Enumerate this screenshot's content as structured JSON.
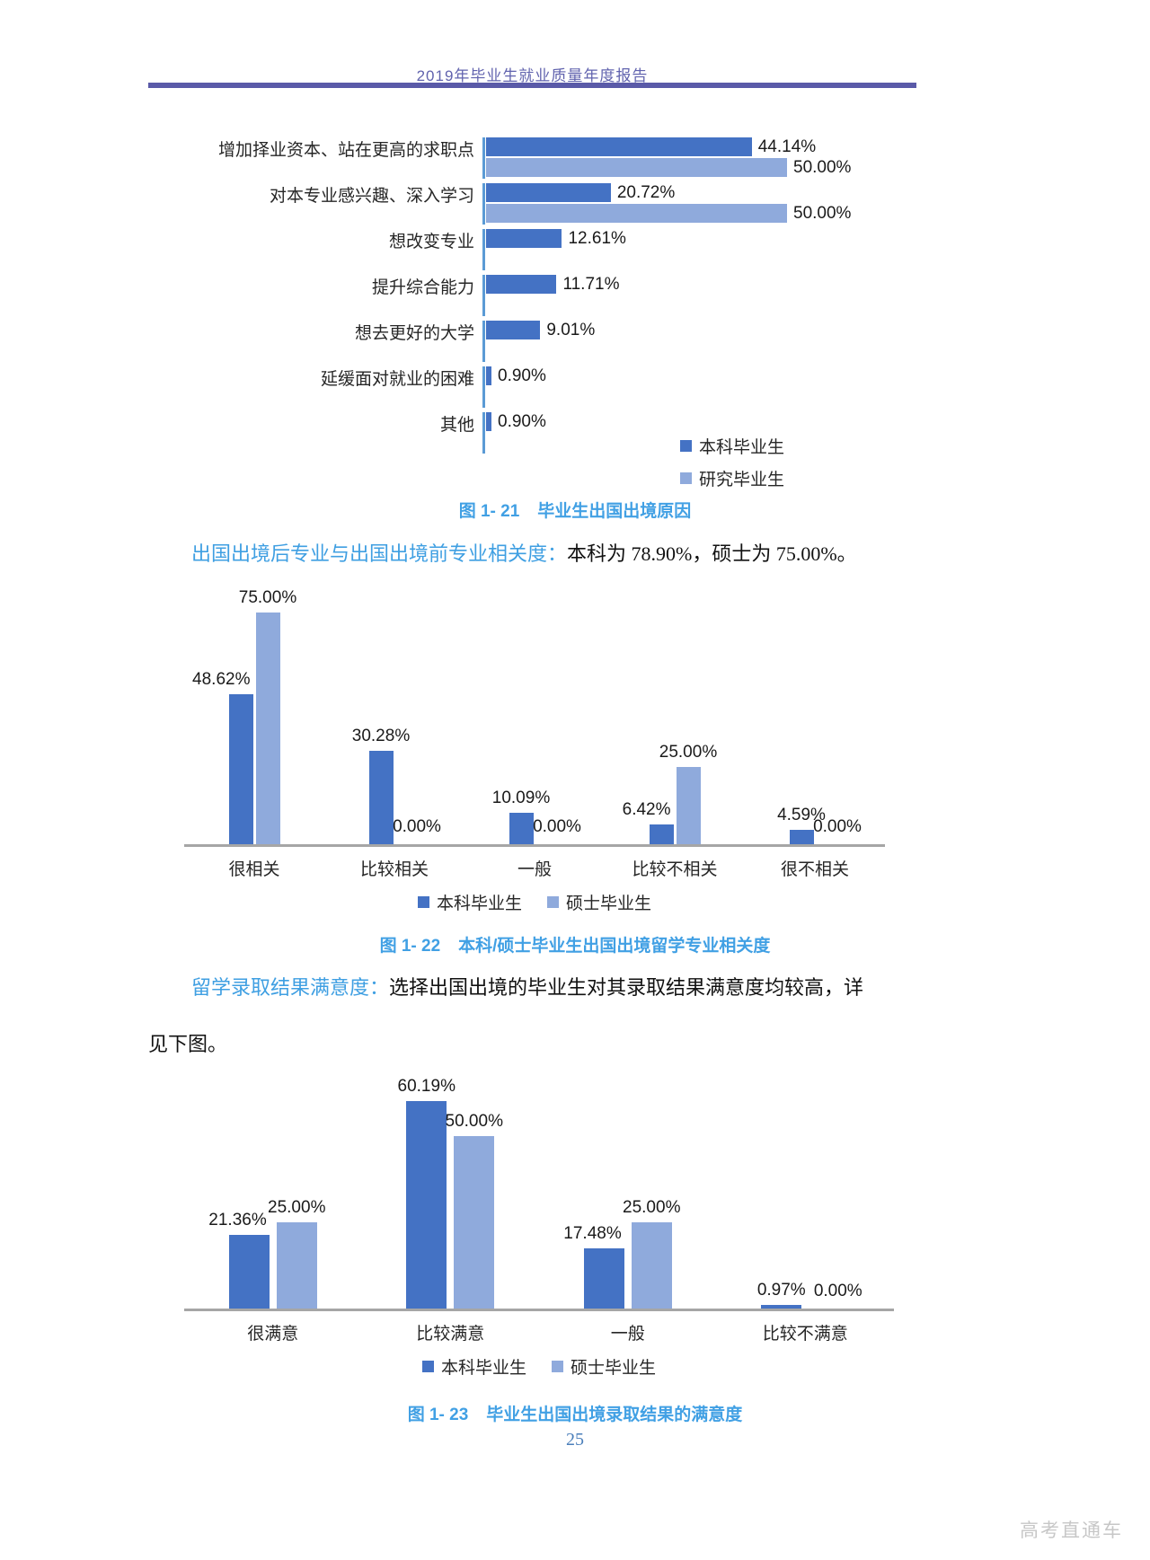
{
  "header": {
    "title": "2019年毕业生就业质量年度报告"
  },
  "paragraphs": {
    "p1_lead": "出国出境后专业与出国出境前专业相关度：",
    "p1_body": "本科为 78.90%，硕士为 75.00%。",
    "p2_lead": "留学录取结果满意度：",
    "p2_body": "选择出国出境的毕业生对其录取结果满意度均较高，详",
    "p2_line2": "见下图。"
  },
  "footer": {
    "page_number": "25",
    "watermark": "高考直通车"
  },
  "colors": {
    "series_undergrad": "#4472c4",
    "series_master": "#8faadc",
    "axis_line": "#5b9bd5",
    "baseline": "#a6a6a6",
    "caption_blue": "#41a0e4",
    "header_purple": "#5a5aa8"
  },
  "chart_data": [
    {
      "id": "fig-1-21",
      "type": "bar",
      "orientation": "horizontal",
      "caption_num": "图 1- 21",
      "caption_text": "毕业生出国出境原因",
      "categories": [
        "增加择业资本、站在更高的求职点",
        "对本专业感兴趣、深入学习",
        "想改变专业",
        "提升综合能力",
        "想去更好的大学",
        "延缓面对就业的困难",
        "其他"
      ],
      "series": [
        {
          "name": "本科毕业生",
          "values": [
            44.14,
            20.72,
            12.61,
            11.71,
            9.01,
            0.9,
            0.9
          ]
        },
        {
          "name": "研究毕业生",
          "values": [
            50.0,
            50.0,
            null,
            null,
            null,
            null,
            null
          ]
        }
      ],
      "value_label_format": "0.00%",
      "xlim": [
        0,
        55
      ],
      "grid": false,
      "legend_position": "inside-bottom-right"
    },
    {
      "id": "fig-1-22",
      "type": "bar",
      "orientation": "vertical",
      "caption_num": "图 1- 22",
      "caption_text": "本科/硕士毕业生出国出境留学专业相关度",
      "categories": [
        "很相关",
        "比较相关",
        "一般",
        "比较不相关",
        "很不相关"
      ],
      "series": [
        {
          "name": "本科毕业生",
          "values": [
            48.62,
            30.28,
            10.09,
            6.42,
            4.59
          ]
        },
        {
          "name": "硕士毕业生",
          "values": [
            75.0,
            0.0,
            0.0,
            25.0,
            0.0
          ]
        }
      ],
      "value_label_format": "0.00%",
      "ylim": [
        0,
        80
      ],
      "grid": false,
      "legend_position": "bottom-center"
    },
    {
      "id": "fig-1-23",
      "type": "bar",
      "orientation": "vertical",
      "caption_num": "图 1- 23",
      "caption_text": "毕业生出国出境录取结果的满意度",
      "categories": [
        "很满意",
        "比较满意",
        "一般",
        "比较不满意"
      ],
      "series": [
        {
          "name": "本科毕业生",
          "values": [
            21.36,
            60.19,
            17.48,
            0.97
          ]
        },
        {
          "name": "硕士毕业生",
          "values": [
            25.0,
            50.0,
            25.0,
            0.0
          ]
        }
      ],
      "value_label_format": "0.00%",
      "ylim": [
        0,
        65
      ],
      "grid": false,
      "legend_position": "bottom-center"
    }
  ]
}
